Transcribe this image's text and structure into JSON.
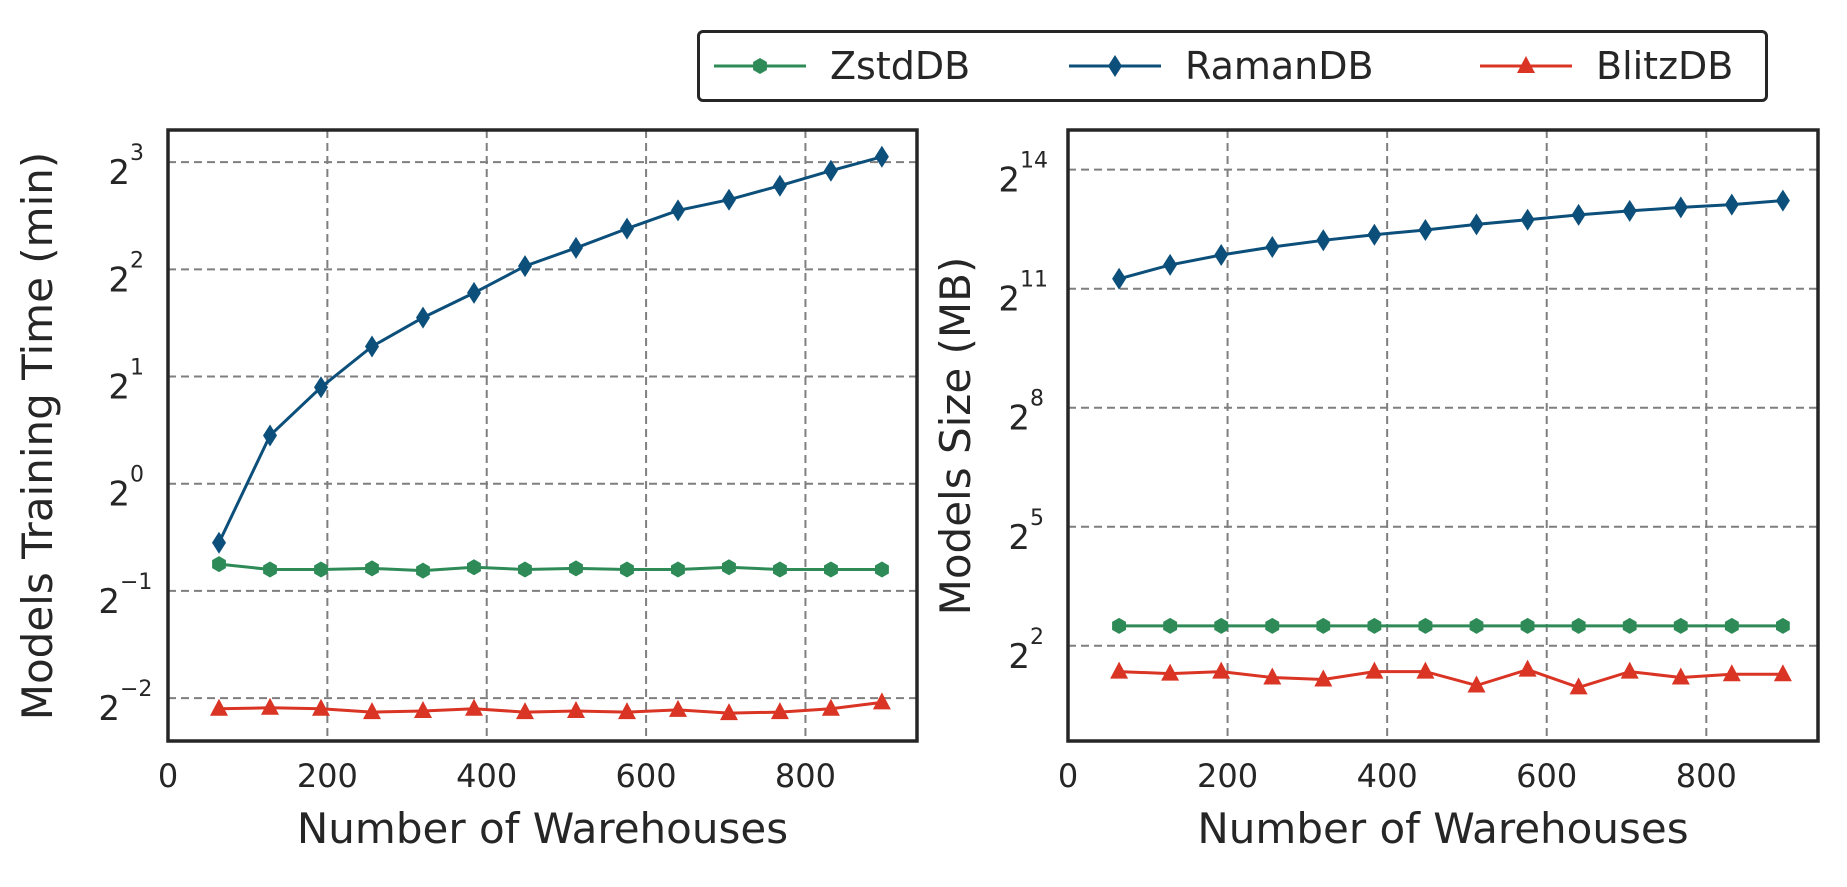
{
  "legend": [
    {
      "name": "ZstdDB",
      "color": "#2e8b57",
      "marker": "hexagon"
    },
    {
      "name": "RamanDB",
      "color": "#0b4f7a",
      "marker": "diamond"
    },
    {
      "name": "BlitzDB",
      "color": "#d93424",
      "marker": "triangle"
    }
  ],
  "chart_data": [
    {
      "type": "line",
      "xlabel": "Number of Warehouses",
      "ylabel": "Models Training Time (min)",
      "y_scale": "log2",
      "xlim": [
        0,
        940
      ],
      "x_ticks": [
        0,
        200,
        400,
        600,
        800
      ],
      "y_tick_exponents": [
        -2,
        -1,
        0,
        1,
        2,
        3
      ],
      "y_exponent_range": [
        -2.4,
        3.3
      ],
      "grid": true,
      "x": [
        64,
        128,
        192,
        256,
        320,
        384,
        448,
        512,
        576,
        640,
        704,
        768,
        832,
        896
      ],
      "series": [
        {
          "name": "ZstdDB",
          "values_log2": [
            -0.75,
            -0.8,
            -0.8,
            -0.79,
            -0.81,
            -0.78,
            -0.8,
            -0.79,
            -0.8,
            -0.8,
            -0.78,
            -0.8,
            -0.8,
            -0.8
          ]
        },
        {
          "name": "RamanDB",
          "values_log2": [
            -0.55,
            0.45,
            0.9,
            1.28,
            1.55,
            1.78,
            2.03,
            2.2,
            2.38,
            2.55,
            2.65,
            2.78,
            2.92,
            3.05
          ]
        },
        {
          "name": "BlitzDB",
          "values_log2": [
            -2.1,
            -2.09,
            -2.1,
            -2.13,
            -2.12,
            -2.1,
            -2.13,
            -2.12,
            -2.13,
            -2.11,
            -2.14,
            -2.13,
            -2.1,
            -2.04
          ]
        }
      ]
    },
    {
      "type": "line",
      "xlabel": "Number of Warehouses",
      "ylabel": "Models Size (MB)",
      "y_scale": "log2",
      "xlim": [
        0,
        940
      ],
      "x_ticks": [
        0,
        200,
        400,
        600,
        800
      ],
      "y_tick_exponents": [
        2,
        5,
        8,
        11,
        14
      ],
      "y_exponent_range": [
        -0.4,
        15.0
      ],
      "grid": true,
      "x": [
        64,
        128,
        192,
        256,
        320,
        384,
        448,
        512,
        576,
        640,
        704,
        768,
        832,
        896
      ],
      "series": [
        {
          "name": "ZstdDB",
          "values_log2": [
            2.5,
            2.5,
            2.5,
            2.5,
            2.5,
            2.5,
            2.5,
            2.5,
            2.5,
            2.5,
            2.5,
            2.5,
            2.5,
            2.5
          ]
        },
        {
          "name": "RamanDB",
          "values_log2": [
            11.25,
            11.6,
            11.85,
            12.05,
            12.22,
            12.36,
            12.48,
            12.62,
            12.74,
            12.86,
            12.96,
            13.05,
            13.12,
            13.22
          ]
        },
        {
          "name": "BlitzDB",
          "values_log2": [
            1.35,
            1.3,
            1.35,
            1.2,
            1.15,
            1.35,
            1.35,
            1.0,
            1.4,
            0.95,
            1.35,
            1.2,
            1.28,
            1.28
          ]
        }
      ]
    }
  ]
}
